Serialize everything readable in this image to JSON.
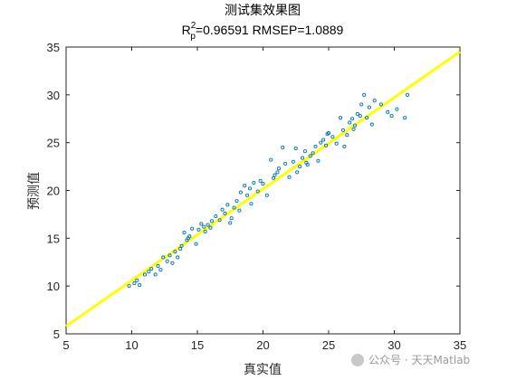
{
  "chart_data": {
    "type": "scatter",
    "title": "测试集效果图",
    "subtitle": {
      "r2_base": "R",
      "r2_sup": "2",
      "r2_sub": "p",
      "rest": "=0.96591  RMSEP=1.0889"
    },
    "xlabel": "真实值",
    "ylabel": "预测值",
    "xlim": [
      5,
      35
    ],
    "ylim": [
      5,
      35
    ],
    "xticks": [
      "5",
      "10",
      "15",
      "20",
      "25",
      "30",
      "35"
    ],
    "yticks": [
      "5",
      "10",
      "15",
      "20",
      "25",
      "30",
      "35"
    ],
    "grid": false,
    "point_color": "#0072BD",
    "line_color": "#FFFF00",
    "fit_line": {
      "x": [
        5,
        35
      ],
      "y": [
        5.8,
        34.5
      ]
    },
    "points": [
      [
        9.8,
        10.0
      ],
      [
        10.2,
        10.3
      ],
      [
        10.4,
        10.6
      ],
      [
        10.6,
        10.1
      ],
      [
        11.0,
        11.2
      ],
      [
        11.3,
        11.5
      ],
      [
        11.5,
        11.8
      ],
      [
        12.0,
        12.1
      ],
      [
        12.2,
        11.7
      ],
      [
        12.4,
        13.0
      ],
      [
        12.7,
        12.6
      ],
      [
        12.9,
        13.2
      ],
      [
        13.1,
        12.4
      ],
      [
        13.3,
        13.6
      ],
      [
        13.5,
        13.0
      ],
      [
        13.8,
        14.2
      ],
      [
        14.0,
        15.6
      ],
      [
        14.2,
        14.8
      ],
      [
        14.4,
        15.2
      ],
      [
        14.6,
        16.0
      ],
      [
        14.9,
        14.4
      ],
      [
        15.1,
        15.9
      ],
      [
        15.3,
        16.5
      ],
      [
        15.6,
        15.7
      ],
      [
        15.8,
        16.4
      ],
      [
        16.1,
        16.8
      ],
      [
        16.4,
        17.3
      ],
      [
        16.7,
        16.9
      ],
      [
        16.9,
        18.0
      ],
      [
        17.1,
        17.6
      ],
      [
        17.3,
        18.5
      ],
      [
        17.5,
        16.6
      ],
      [
        17.8,
        18.2
      ],
      [
        18.0,
        18.9
      ],
      [
        18.3,
        19.8
      ],
      [
        18.6,
        20.5
      ],
      [
        18.8,
        19.5
      ],
      [
        19.0,
        20.2
      ],
      [
        19.3,
        20.8
      ],
      [
        19.6,
        19.9
      ],
      [
        19.8,
        21.0
      ],
      [
        20.0,
        20.7
      ],
      [
        20.3,
        19.5
      ],
      [
        20.6,
        23.2
      ],
      [
        20.9,
        21.6
      ],
      [
        21.2,
        22.3
      ],
      [
        21.5,
        24.5
      ],
      [
        21.7,
        22.8
      ],
      [
        22.0,
        21.4
      ],
      [
        22.3,
        23.0
      ],
      [
        22.5,
        24.4
      ],
      [
        22.8,
        22.5
      ],
      [
        23.0,
        23.4
      ],
      [
        23.2,
        24.1
      ],
      [
        23.4,
        22.7
      ],
      [
        23.6,
        23.6
      ],
      [
        23.8,
        23.9
      ],
      [
        24.0,
        24.6
      ],
      [
        24.2,
        23.1
      ],
      [
        24.4,
        25.0
      ],
      [
        24.6,
        25.3
      ],
      [
        24.8,
        24.7
      ],
      [
        25.0,
        26.0
      ],
      [
        25.3,
        25.6
      ],
      [
        25.6,
        24.9
      ],
      [
        25.9,
        27.6
      ],
      [
        26.1,
        26.3
      ],
      [
        26.4,
        25.8
      ],
      [
        26.6,
        27.1
      ],
      [
        26.8,
        27.5
      ],
      [
        27.0,
        26.8
      ],
      [
        27.2,
        28.0
      ],
      [
        27.5,
        29.0
      ],
      [
        27.7,
        30.0
      ],
      [
        27.9,
        27.6
      ],
      [
        28.1,
        28.7
      ],
      [
        28.3,
        26.9
      ],
      [
        28.5,
        29.4
      ],
      [
        29.0,
        29.0
      ],
      [
        29.5,
        28.2
      ],
      [
        29.8,
        27.8
      ],
      [
        30.2,
        28.5
      ],
      [
        30.8,
        27.6
      ],
      [
        31.0,
        30.0
      ],
      [
        26.2,
        24.6
      ],
      [
        22.6,
        21.9
      ],
      [
        19.1,
        18.6
      ],
      [
        16.0,
        16.1
      ],
      [
        13.7,
        13.9
      ],
      [
        11.8,
        11.2
      ],
      [
        24.9,
        25.9
      ],
      [
        20.8,
        21.3
      ],
      [
        18.2,
        17.9
      ],
      [
        15.5,
        16.2
      ],
      [
        27.4,
        27.8
      ],
      [
        23.3,
        22.9
      ],
      [
        17.6,
        17.1
      ],
      [
        21.1,
        21.9
      ],
      [
        26.9,
        26.4
      ],
      [
        14.3,
        15.0
      ]
    ]
  },
  "watermark": "公众号 · 天天Matlab"
}
